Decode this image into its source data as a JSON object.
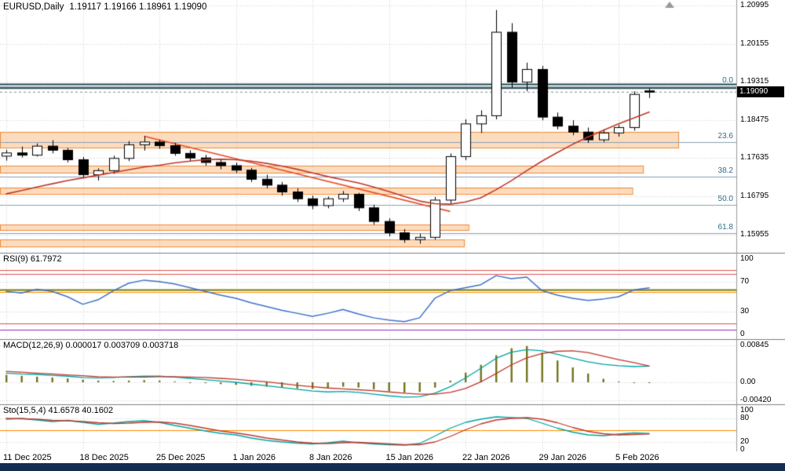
{
  "header": {
    "symbol_period": "EURUSD,Daily",
    "ohlc_text": "1.19117 1.19166 1.18961 1.19090"
  },
  "colors": {
    "bull": "#ffffff",
    "bear": "#000000",
    "outline": "#000000",
    "ma": "#c0392b",
    "trend": "#e8502a",
    "zone_fill": "#f9b26f",
    "zone_border": "#f08a3c",
    "fib_line": "#8aa0b4",
    "fib_text": "#2e6e8e",
    "grid": "#d4d4d4",
    "rsi": "#3f72c8",
    "hist": "#73731f",
    "cyan": "#00a3a3",
    "red": "#c0392b",
    "price_box_bg": "#000000",
    "price_box_text": "#ffffff",
    "bottom_bar": "#142c50"
  },
  "chart_data": [
    {
      "type": "candlestick",
      "panel": "price",
      "title": "EURUSD,Daily",
      "ylim": [
        1.1555,
        1.2112
      ],
      "price_axis_labels": [
        "1.20995",
        "1.20155",
        "1.19315",
        "1.18475",
        "1.17635",
        "1.16795",
        "1.15955"
      ],
      "current_price": "1.19090",
      "x_axis_labels": [
        {
          "index": 0,
          "label": "11 Dec 2025"
        },
        {
          "index": 5,
          "label": "18 Dec 2025"
        },
        {
          "index": 10,
          "label": "25 Dec 2025"
        },
        {
          "index": 15,
          "label": "1 Jan 2026"
        },
        {
          "index": 20,
          "label": "8 Jan 2026"
        },
        {
          "index": 25,
          "label": "15 Jan 2026"
        },
        {
          "index": 30,
          "label": "22 Jan 2026"
        },
        {
          "index": 35,
          "label": "29 Jan 2026"
        },
        {
          "index": 40,
          "label": "5 Feb 2026"
        }
      ],
      "candles": [
        [
          1.1768,
          1.1782,
          1.1758,
          1.1775
        ],
        [
          1.1775,
          1.1789,
          1.1765,
          1.177
        ],
        [
          1.177,
          1.1796,
          1.1767,
          1.179
        ],
        [
          1.179,
          1.1803,
          1.1774,
          1.1781
        ],
        [
          1.1781,
          1.1786,
          1.1754,
          1.176
        ],
        [
          1.176,
          1.1766,
          1.1719,
          1.1727
        ],
        [
          1.1727,
          1.1741,
          1.1714,
          1.1736
        ],
        [
          1.1736,
          1.1769,
          1.1729,
          1.1763
        ],
        [
          1.1763,
          1.1801,
          1.1757,
          1.1793
        ],
        [
          1.1793,
          1.1812,
          1.178,
          1.1799
        ],
        [
          1.1799,
          1.1804,
          1.1784,
          1.1791
        ],
        [
          1.1791,
          1.1797,
          1.1769,
          1.1774
        ],
        [
          1.1774,
          1.1781,
          1.1757,
          1.1764
        ],
        [
          1.1764,
          1.1771,
          1.1747,
          1.1754
        ],
        [
          1.1754,
          1.1761,
          1.1739,
          1.1747
        ],
        [
          1.1747,
          1.1754,
          1.1731,
          1.1737
        ],
        [
          1.1737,
          1.1742,
          1.1711,
          1.1717
        ],
        [
          1.1717,
          1.1727,
          1.1697,
          1.1704
        ],
        [
          1.1704,
          1.1711,
          1.1681,
          1.1689
        ],
        [
          1.1689,
          1.1697,
          1.1667,
          1.1674
        ],
        [
          1.1674,
          1.1681,
          1.1651,
          1.1659
        ],
        [
          1.1659,
          1.1679,
          1.1653,
          1.1674
        ],
        [
          1.1674,
          1.1691,
          1.1667,
          1.1684
        ],
        [
          1.1684,
          1.1687,
          1.1647,
          1.1654
        ],
        [
          1.1654,
          1.1661,
          1.1617,
          1.1624
        ],
        [
          1.1624,
          1.1631,
          1.1591,
          1.1599
        ],
        [
          1.1599,
          1.1607,
          1.1577,
          1.1584
        ],
        [
          1.1584,
          1.1597,
          1.1575,
          1.1589
        ],
        [
          1.1589,
          1.1678,
          1.1584,
          1.1671
        ],
        [
          1.1671,
          1.1774,
          1.1664,
          1.1767
        ],
        [
          1.1767,
          1.1849,
          1.1759,
          1.1839
        ],
        [
          1.1839,
          1.1869,
          1.1819,
          1.1857
        ],
        [
          1.1857,
          1.209,
          1.1849,
          1.2041
        ],
        [
          1.2041,
          1.2061,
          1.1919,
          1.1931
        ],
        [
          1.1931,
          1.1974,
          1.1911,
          1.1959
        ],
        [
          1.1959,
          1.1967,
          1.1847,
          1.1854
        ],
        [
          1.1854,
          1.1864,
          1.1827,
          1.1834
        ],
        [
          1.1834,
          1.1847,
          1.1814,
          1.1821
        ],
        [
          1.1821,
          1.1831,
          1.1797,
          1.1804
        ],
        [
          1.1804,
          1.1827,
          1.1799,
          1.1819
        ],
        [
          1.1819,
          1.1837,
          1.1811,
          1.1831
        ],
        [
          1.1831,
          1.1911,
          1.1824,
          1.1904
        ],
        [
          1.19117,
          1.19166,
          1.18961,
          1.1909
        ]
      ],
      "ma": [
        1.1685,
        1.1692,
        1.17,
        1.1707,
        1.1714,
        1.172,
        1.1726,
        1.1732,
        1.1738,
        1.1744,
        1.1748,
        1.1753,
        1.1757,
        1.176,
        1.1761,
        1.176,
        1.1757,
        1.1752,
        1.1746,
        1.1739,
        1.1731,
        1.1723,
        1.1716,
        1.1709,
        1.17,
        1.169,
        1.1679,
        1.1669,
        1.1663,
        1.1662,
        1.1667,
        1.1676,
        1.1694,
        1.1714,
        1.1736,
        1.1757,
        1.1776,
        1.1794,
        1.181,
        1.1825,
        1.1839,
        1.1852,
        1.1865
      ],
      "fib_levels": [
        {
          "label": "0.0",
          "price": 1.1922
        },
        {
          "label": "23.6",
          "price": 1.17984
        },
        {
          "label": "38.2",
          "price": 1.1722
        },
        {
          "label": "50.0",
          "price": 1.16603
        },
        {
          "label": "61.8",
          "price": 1.15985
        }
      ],
      "zones": [
        {
          "top": 1.1821,
          "bottom": 1.1787,
          "end_index": 43.9
        },
        {
          "top": 1.1747,
          "bottom": 1.1731,
          "end_index": 41.6
        },
        {
          "top": 1.1699,
          "bottom": 1.1685,
          "end_index": 40.9
        },
        {
          "top": 1.1617,
          "bottom": 1.1605,
          "end_index": 30.2
        },
        {
          "top": 1.1584,
          "bottom": 1.1569,
          "end_index": 29.9
        }
      ],
      "hlines": [
        {
          "price": 1.1926,
          "width": 2,
          "color": "#24484c"
        },
        {
          "price": 1.1918,
          "width": 2,
          "color": "#24484c"
        }
      ],
      "trendline": {
        "i1": 9,
        "p1": 1.1812,
        "i2": 29,
        "p2": 1.1646
      }
    },
    {
      "type": "line",
      "panel": "rsi",
      "label": "RSI(9) 61.7972",
      "ylim": [
        0,
        100
      ],
      "axis_labels": [
        100,
        70,
        30,
        0
      ],
      "grid_levels": [
        70,
        30
      ],
      "levels": [
        {
          "value": 85,
          "color": "#e05252",
          "width": 1
        },
        {
          "value": 80,
          "color": "#e05252",
          "width": 1
        },
        {
          "value": 59,
          "color": "#7a7a00",
          "width": 2
        },
        {
          "value": 56,
          "color": "#ff8a00",
          "width": 1
        },
        {
          "value": 15,
          "color": "#e05252",
          "width": 1
        },
        {
          "value": 6,
          "color": "#8b2fbe",
          "width": 1
        }
      ],
      "values": [
        57,
        55,
        60,
        57,
        50,
        40,
        46,
        58,
        68,
        72,
        70,
        67,
        62,
        57,
        52,
        48,
        42,
        37,
        32,
        28,
        24,
        28,
        33,
        27,
        22,
        19,
        17,
        22,
        48,
        58,
        62,
        66,
        78,
        74,
        76,
        58,
        52,
        48,
        45,
        47,
        50,
        59,
        61.8
      ]
    },
    {
      "type": "macd",
      "panel": "macd",
      "label": "MACD(12,26,9) 0.000017 0.003709 0.003718",
      "ylim": [
        -0.00449,
        0.00917
      ],
      "axis_labels": [
        "0.00845",
        "0.00",
        "-0.00420"
      ],
      "axis_values": [
        0.00845,
        0,
        -0.0042
      ],
      "hist": [
        0.0017,
        0.0015,
        0.0013,
        0.0011,
        0.0009,
        0.0006,
        0.0004,
        0.0003,
        0.0004,
        0.0005,
        0.0004,
        0.0002,
        0.0,
        -0.0002,
        -0.0004,
        -0.0006,
        -0.0008,
        -0.001,
        -0.0012,
        -0.0014,
        -0.0015,
        -0.0013,
        -0.001,
        -0.0012,
        -0.0016,
        -0.002,
        -0.0024,
        -0.0022,
        -0.0012,
        0.0004,
        0.0022,
        0.004,
        0.0062,
        0.0078,
        0.0083,
        0.0068,
        0.005,
        0.0034,
        0.002,
        0.0008,
        0.0002,
        0.0,
        1.7e-05
      ],
      "macd": [
        0.0021,
        0.0019,
        0.0018,
        0.0016,
        0.0014,
        0.0011,
        0.001,
        0.0011,
        0.0013,
        0.0014,
        0.0014,
        0.0012,
        0.0009,
        0.0006,
        0.0003,
        0.0,
        -0.0004,
        -0.0008,
        -0.0012,
        -0.0016,
        -0.002,
        -0.0022,
        -0.0021,
        -0.0023,
        -0.0027,
        -0.0031,
        -0.0034,
        -0.0033,
        -0.0025,
        -0.001,
        0.001,
        0.0032,
        0.0055,
        0.0069,
        0.0075,
        0.0072,
        0.0064,
        0.0055,
        0.0047,
        0.0041,
        0.0038,
        0.0036,
        0.003709
      ],
      "signal": [
        0.0025,
        0.0023,
        0.0021,
        0.0019,
        0.0017,
        0.0015,
        0.0013,
        0.0012,
        0.0012,
        0.0012,
        0.0013,
        0.0013,
        0.0012,
        0.0011,
        0.0009,
        0.0007,
        0.0004,
        0.0001,
        -0.0003,
        -0.0007,
        -0.001,
        -0.0013,
        -0.0015,
        -0.0017,
        -0.0019,
        -0.0022,
        -0.0025,
        -0.0027,
        -0.0027,
        -0.0023,
        -0.0014,
        0.0001,
        0.002,
        0.004,
        0.0056,
        0.0066,
        0.0071,
        0.0072,
        0.0068,
        0.006,
        0.0052,
        0.0045,
        0.003718
      ]
    },
    {
      "type": "stochastic",
      "panel": "stoch",
      "label": "Sto(15,5,4) 41.6578 40.1602",
      "ylim": [
        0,
        100
      ],
      "axis_labels": [
        100,
        80,
        20,
        0
      ],
      "grid_levels": [
        80,
        20
      ],
      "levels": [
        {
          "value": 50,
          "color": "#ff8a00",
          "width": 1
        }
      ],
      "k": [
        78,
        80,
        76,
        72,
        75,
        70,
        65,
        68,
        72,
        74,
        70,
        62,
        55,
        48,
        42,
        38,
        30,
        24,
        20,
        17,
        15,
        18,
        22,
        18,
        15,
        13,
        12,
        16,
        35,
        55,
        70,
        78,
        84,
        82,
        80,
        68,
        55,
        45,
        38,
        36,
        40,
        43,
        41.6578
      ],
      "d": [
        80,
        79,
        78,
        75,
        74,
        72,
        69,
        67,
        68,
        70,
        71,
        68,
        62,
        55,
        48,
        43,
        37,
        30,
        25,
        20,
        17,
        16,
        18,
        19,
        17,
        15,
        13,
        13,
        20,
        34,
        51,
        66,
        76,
        80,
        82,
        78,
        69,
        57,
        47,
        41,
        38,
        39,
        40.1602
      ]
    }
  ]
}
